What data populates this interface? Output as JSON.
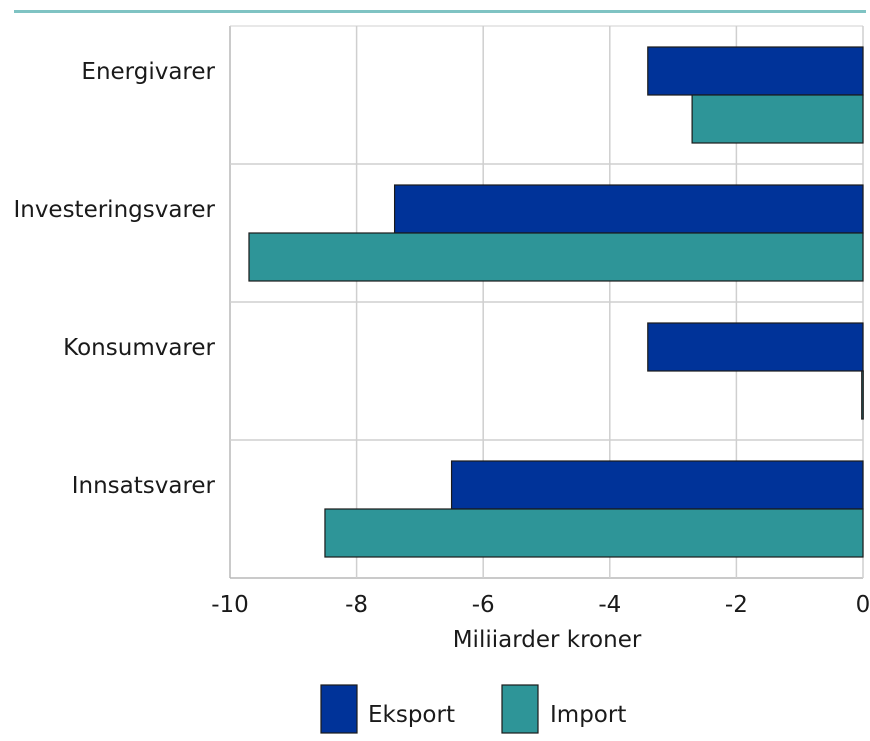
{
  "chart_data": {
    "type": "bar",
    "orientation": "horizontal",
    "categories": [
      "Energivarer",
      "Investeringsvarer",
      "Konsumvarer",
      "Innsatsvarer"
    ],
    "series": [
      {
        "name": "Eksport",
        "color": "#003399",
        "values": [
          -3.4,
          -7.4,
          -3.4,
          -6.5
        ]
      },
      {
        "name": "Import",
        "color": "#2e9598",
        "values": [
          -2.7,
          -9.7,
          -0.02,
          -8.5
        ]
      }
    ],
    "xlabel": "Miliiarder kroner",
    "xlim": [
      -10,
      0
    ],
    "xticks": [
      -10,
      -8,
      -6,
      -4,
      -2,
      0
    ],
    "xtick_labels": [
      "-10",
      "-8",
      "-6",
      "-4",
      "-2",
      "0"
    ],
    "grid": true,
    "legend": "bottom"
  }
}
